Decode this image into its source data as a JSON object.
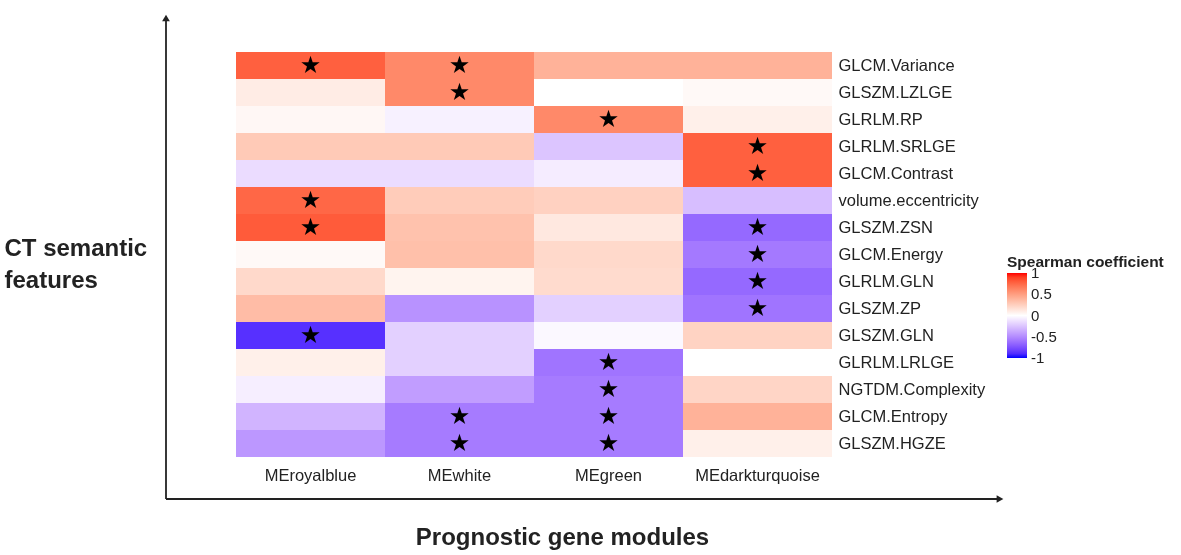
{
  "chart_data": {
    "type": "heatmap",
    "xlabel": "Prognostic gene modules",
    "ylabel": "CT semantic features",
    "clabel": "Spearman coefficient",
    "categories": [
      "MEroyalblue",
      "MEwhite",
      "MEgreen",
      "MEdarkturquoise"
    ],
    "y_categories": [
      "GLCM.Variance",
      "GLSZM.LZLGE",
      "GLRLM.RP",
      "GLRLM.SRLGE",
      "GLCM.Contrast",
      "volume.eccentricity",
      "GLSZM.ZSN",
      "GLCM.Energy",
      "GLRLM.GLN",
      "GLSZM.ZP",
      "GLSZM.GLN",
      "GLRLM.LRLGE",
      "NGTDM.Complexity",
      "GLCM.Entropy",
      "GLSZM.HGZE"
    ],
    "cells": [
      [
        0.78,
        0.6,
        0.4,
        0.4
      ],
      [
        0.1,
        0.6,
        0.0,
        0.03
      ],
      [
        0.04,
        -0.06,
        0.6,
        0.08
      ],
      [
        0.28,
        0.28,
        -0.25,
        0.78
      ],
      [
        -0.15,
        -0.15,
        -0.08,
        0.78
      ],
      [
        0.75,
        0.27,
        0.24,
        -0.28
      ],
      [
        0.8,
        0.32,
        0.12,
        -0.65
      ],
      [
        0.03,
        0.33,
        0.2,
        -0.58
      ],
      [
        0.2,
        0.06,
        0.19,
        -0.65
      ],
      [
        0.35,
        -0.47,
        -0.2,
        -0.6
      ],
      [
        -0.88,
        -0.2,
        -0.03,
        0.23
      ],
      [
        0.08,
        -0.2,
        -0.6,
        0.0
      ],
      [
        -0.07,
        -0.42,
        -0.57,
        0.22
      ],
      [
        -0.32,
        -0.57,
        -0.57,
        0.4
      ],
      [
        -0.45,
        -0.57,
        -0.57,
        0.08
      ]
    ],
    "cell_labels": [
      [
        "★",
        "★",
        null,
        null
      ],
      [
        null,
        "★",
        null,
        null
      ],
      [
        null,
        null,
        "★",
        null
      ],
      [
        null,
        null,
        null,
        "★"
      ],
      [
        null,
        null,
        null,
        "★"
      ],
      [
        "★",
        null,
        null,
        null
      ],
      [
        "★",
        null,
        null,
        "★"
      ],
      [
        null,
        null,
        null,
        "★"
      ],
      [
        null,
        null,
        null,
        "★"
      ],
      [
        null,
        null,
        null,
        "★"
      ],
      [
        "★",
        null,
        null,
        null
      ],
      [
        null,
        null,
        "★",
        null
      ],
      [
        null,
        null,
        "★",
        null
      ],
      [
        null,
        "★",
        "★",
        null
      ],
      [
        null,
        "★",
        "★",
        null
      ]
    ],
    "clim": [
      -1,
      1
    ],
    "cticks": [
      -1,
      -0.5,
      0,
      0.5,
      1
    ]
  }
}
